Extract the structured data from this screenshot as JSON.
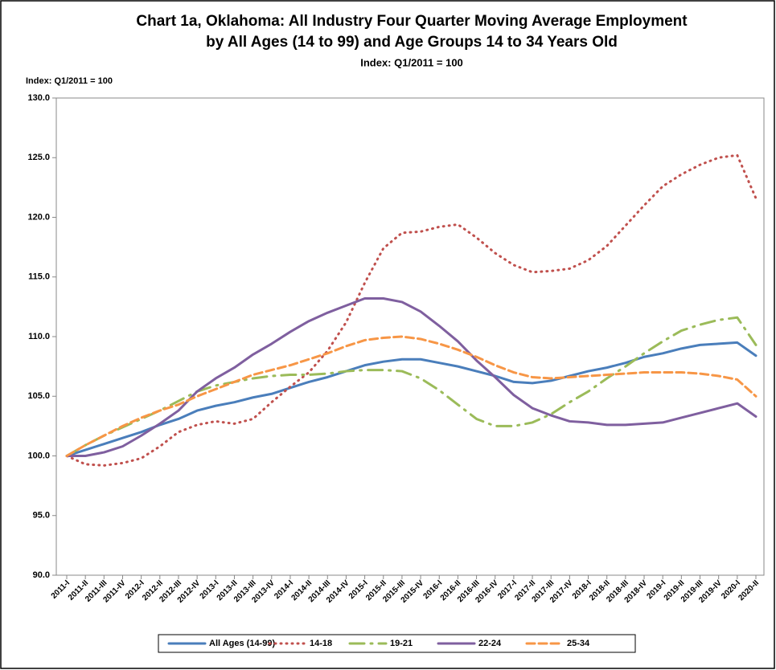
{
  "chart_data": {
    "type": "line",
    "title": "Chart 1a, Oklahoma: All Industry Four Quarter Moving Average Employment",
    "title_line2": "by All Ages (14 to 99) and Age Groups 14 to 34 Years Old",
    "subtitle": "Index: Q1/2011 = 100",
    "y_label": "Index: Q1/2011 = 100",
    "categories": [
      "2011-I",
      "2011-II",
      "2011-III",
      "2011-IV",
      "2012-I",
      "2012-II",
      "2012-III",
      "2012-IV",
      "2013-I",
      "2013-II",
      "2013-III",
      "2013-IV",
      "2014-I",
      "2014-II",
      "2014-III",
      "2014-IV",
      "2015-I",
      "2015-II",
      "2015-III",
      "2015-IV",
      "2016-I",
      "2016-II",
      "2016-III",
      "2016-IV",
      "2017-I",
      "2017-II",
      "2017-III",
      "2017-IV",
      "2018-I",
      "2018-II",
      "2018-III",
      "2018-IV",
      "2019-I",
      "2019-II",
      "2019-III",
      "2019-IV",
      "2020-I",
      "2020-II"
    ],
    "series": [
      {
        "name": "All Ages (14-99)",
        "color": "#4a7ebb",
        "style": "solid",
        "values": [
          100,
          100.5,
          101,
          101.5,
          102,
          102.6,
          103.1,
          103.8,
          104.2,
          104.5,
          104.9,
          105.2,
          105.7,
          106.2,
          106.6,
          107.1,
          107.6,
          107.9,
          108.1,
          108.1,
          107.8,
          107.5,
          107.1,
          106.7,
          106.2,
          106.1,
          106.3,
          106.7,
          107.1,
          107.4,
          107.8,
          108.3,
          108.6,
          109.0,
          109.3,
          109.4,
          109.5,
          108.4
        ]
      },
      {
        "name": "14-18",
        "color": "#c0504d",
        "style": "dotted",
        "values": [
          100,
          99.3,
          99.2,
          99.4,
          99.8,
          100.8,
          102.0,
          102.6,
          102.9,
          102.7,
          103.1,
          104.5,
          105.8,
          107.0,
          108.8,
          111.2,
          114.5,
          117.4,
          118.7,
          118.8,
          119.2,
          119.4,
          118.3,
          117.0,
          116.0,
          115.4,
          115.5,
          115.7,
          116.4,
          117.6,
          119.3,
          121.0,
          122.6,
          123.6,
          124.4,
          125.0,
          125.2,
          121.6
        ]
      },
      {
        "name": "19-21",
        "color": "#9bbb59",
        "style": "dashdot",
        "values": [
          100,
          100.9,
          101.7,
          102.4,
          103.1,
          103.8,
          104.6,
          105.4,
          105.9,
          106.2,
          106.5,
          106.7,
          106.8,
          106.8,
          106.9,
          107.1,
          107.2,
          107.2,
          107.1,
          106.5,
          105.5,
          104.3,
          103.1,
          102.5,
          102.5,
          102.8,
          103.5,
          104.5,
          105.4,
          106.5,
          107.5,
          108.6,
          109.6,
          110.5,
          111.0,
          111.4,
          111.6,
          109.3
        ]
      },
      {
        "name": "22-24",
        "color": "#7f5f9f",
        "style": "solid",
        "values": [
          100,
          100,
          100.3,
          100.8,
          101.7,
          102.7,
          103.8,
          105.4,
          106.5,
          107.4,
          108.5,
          109.4,
          110.4,
          111.3,
          112.0,
          112.6,
          113.2,
          113.2,
          112.9,
          112.1,
          110.9,
          109.6,
          108.0,
          106.6,
          105.1,
          104.0,
          103.4,
          102.9,
          102.8,
          102.6,
          102.6,
          102.7,
          102.8,
          103.2,
          103.6,
          104.0,
          104.4,
          103.3
        ]
      },
      {
        "name": "25-34",
        "color": "#f79646",
        "style": "dashed",
        "values": [
          100,
          100.9,
          101.7,
          102.5,
          103.2,
          103.8,
          104.3,
          105.0,
          105.6,
          106.2,
          106.8,
          107.2,
          107.6,
          108.1,
          108.6,
          109.2,
          109.7,
          109.9,
          110.0,
          109.8,
          109.4,
          108.9,
          108.3,
          107.6,
          107.0,
          106.6,
          106.5,
          106.6,
          106.7,
          106.8,
          106.9,
          107.0,
          107.0,
          107.0,
          106.9,
          106.7,
          106.4,
          105.0
        ]
      }
    ],
    "ylim": [
      90,
      130
    ],
    "yticks": [
      {
        "value": 90,
        "label": "90.0"
      },
      {
        "value": 95,
        "label": "95.0"
      },
      {
        "value": 100,
        "label": "100.0"
      },
      {
        "value": 105,
        "label": "105.0"
      },
      {
        "value": 110,
        "label": "110.0"
      },
      {
        "value": 115,
        "label": "115.0"
      },
      {
        "value": 120,
        "label": "120.0"
      },
      {
        "value": 125,
        "label": "125.0"
      },
      {
        "value": 130,
        "label": "130.0"
      }
    ],
    "grid": false,
    "legend": "bottom"
  }
}
